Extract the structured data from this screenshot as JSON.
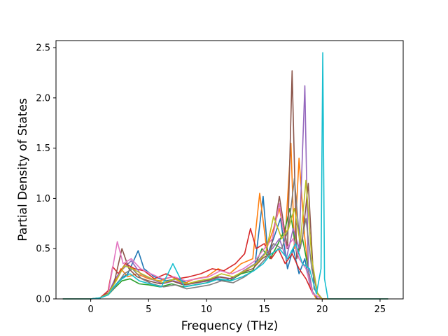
{
  "chart_data": {
    "type": "line",
    "title": "",
    "xlabel": "Frequency (THz)",
    "ylabel": "Partial Density of States",
    "xlim": [
      -3.0,
      27.0
    ],
    "ylim": [
      0.0,
      2.57
    ],
    "xticks": [
      0,
      5,
      10,
      15,
      20,
      25
    ],
    "yticks": [
      0.0,
      0.5,
      1.0,
      1.5,
      2.0,
      2.5
    ],
    "ytick_labels": [
      "0.0",
      "0.5",
      "1.0",
      "1.5",
      "2.0",
      "2.5"
    ],
    "grid": false,
    "legend": "none",
    "series": [
      {
        "color": "#1f77b4",
        "x": [
          -2.4,
          0.0,
          0.8,
          1.5,
          2.0,
          2.6,
          3.2,
          4.1,
          4.6,
          5.5,
          6.5,
          7.5,
          8.5,
          9.5,
          10.5,
          11.5,
          12.5,
          13.5,
          14.2,
          14.9,
          15.3,
          15.8,
          16.4,
          17.0,
          17.5,
          18.0,
          18.5,
          19.0,
          19.6,
          20.0,
          20.4,
          21.0,
          25.7
        ],
        "y": [
          0,
          0,
          0.01,
          0.06,
          0.12,
          0.2,
          0.25,
          0.48,
          0.3,
          0.22,
          0.18,
          0.2,
          0.15,
          0.17,
          0.2,
          0.18,
          0.22,
          0.3,
          0.35,
          1.02,
          0.45,
          0.6,
          0.8,
          0.3,
          0.5,
          0.25,
          0.4,
          0.1,
          0,
          0,
          0,
          0,
          0
        ]
      },
      {
        "color": "#ff7f0e",
        "x": [
          -2.4,
          0.0,
          0.8,
          1.5,
          2.0,
          2.6,
          3.2,
          4.0,
          5.0,
          6.0,
          7.0,
          8.0,
          9.0,
          10.0,
          11.0,
          12.0,
          13.0,
          14.0,
          14.6,
          15.2,
          15.8,
          16.3,
          16.8,
          17.3,
          17.6,
          18.0,
          18.5,
          19.0,
          19.5,
          20.0,
          25.7
        ],
        "y": [
          0,
          0,
          0.01,
          0.05,
          0.15,
          0.3,
          0.22,
          0.25,
          0.2,
          0.18,
          0.22,
          0.15,
          0.2,
          0.22,
          0.3,
          0.25,
          0.35,
          0.4,
          1.05,
          0.5,
          0.7,
          0.9,
          0.6,
          1.55,
          0.5,
          1.4,
          0.6,
          0.1,
          0,
          0,
          0
        ]
      },
      {
        "color": "#2ca02c",
        "x": [
          -2.4,
          0.0,
          0.8,
          1.5,
          2.0,
          2.7,
          3.4,
          4.2,
          5.0,
          6.0,
          7.0,
          8.0,
          9.0,
          10.0,
          11.0,
          12.0,
          13.0,
          14.0,
          14.8,
          15.5,
          16.2,
          16.8,
          17.2,
          17.8,
          18.3,
          18.8,
          19.2,
          20.0,
          25.7
        ],
        "y": [
          0,
          0,
          0.01,
          0.04,
          0.1,
          0.18,
          0.2,
          0.15,
          0.14,
          0.12,
          0.15,
          0.12,
          0.14,
          0.16,
          0.2,
          0.18,
          0.25,
          0.28,
          0.5,
          0.4,
          0.55,
          0.7,
          0.9,
          0.45,
          0.6,
          0.3,
          0.05,
          0,
          0
        ]
      },
      {
        "color": "#d62728",
        "x": [
          -2.4,
          0.0,
          0.8,
          1.5,
          1.9,
          2.4,
          3.0,
          3.8,
          4.6,
          5.5,
          6.5,
          7.5,
          8.5,
          9.5,
          10.5,
          11.5,
          12.5,
          13.3,
          13.8,
          14.3,
          15.0,
          15.6,
          16.2,
          16.8,
          17.4,
          18.0,
          18.6,
          19.2,
          20.0,
          25.7
        ],
        "y": [
          0,
          0,
          0.01,
          0.08,
          0.32,
          0.25,
          0.35,
          0.3,
          0.28,
          0.2,
          0.25,
          0.2,
          0.22,
          0.25,
          0.3,
          0.28,
          0.35,
          0.45,
          0.7,
          0.5,
          0.55,
          0.4,
          0.5,
          0.35,
          0.45,
          0.3,
          0.2,
          0.05,
          0,
          0
        ]
      },
      {
        "color": "#9467bd",
        "x": [
          -2.4,
          0.0,
          0.8,
          1.5,
          2.1,
          2.8,
          3.5,
          4.3,
          5.2,
          6.2,
          7.2,
          8.2,
          9.2,
          10.2,
          11.2,
          12.2,
          13.2,
          14.2,
          15.0,
          15.7,
          16.3,
          16.9,
          17.5,
          18.0,
          18.5,
          18.8,
          19.2,
          20.0,
          25.7
        ],
        "y": [
          0,
          0,
          0.01,
          0.05,
          0.2,
          0.3,
          0.38,
          0.25,
          0.2,
          0.15,
          0.18,
          0.14,
          0.16,
          0.18,
          0.22,
          0.2,
          0.28,
          0.35,
          0.45,
          0.5,
          0.6,
          0.4,
          0.7,
          0.5,
          2.12,
          0.3,
          0.05,
          0,
          0
        ]
      },
      {
        "color": "#8c564b",
        "x": [
          -2.4,
          0.0,
          0.8,
          1.5,
          2.0,
          2.7,
          3.3,
          4.0,
          5.0,
          6.0,
          7.0,
          8.0,
          9.0,
          10.0,
          11.0,
          12.0,
          13.0,
          14.0,
          14.8,
          15.5,
          16.3,
          17.0,
          17.4,
          17.8,
          18.3,
          18.8,
          19.3,
          20.0,
          25.7
        ],
        "y": [
          0,
          0,
          0.01,
          0.06,
          0.15,
          0.5,
          0.3,
          0.22,
          0.18,
          0.15,
          0.18,
          0.14,
          0.16,
          0.18,
          0.22,
          0.2,
          0.26,
          0.3,
          0.4,
          0.45,
          1.02,
          0.5,
          2.27,
          0.4,
          0.6,
          1.15,
          0.1,
          0,
          0
        ]
      },
      {
        "color": "#e377c2",
        "x": [
          -2.4,
          0.0,
          0.8,
          1.5,
          2.3,
          2.8,
          3.5,
          4.3,
          5.2,
          6.2,
          7.2,
          8.2,
          9.2,
          10.2,
          11.2,
          12.2,
          13.2,
          14.2,
          15.0,
          15.7,
          16.3,
          16.9,
          17.5,
          18.0,
          18.6,
          19.2,
          20.0,
          25.7
        ],
        "y": [
          0,
          0,
          0.01,
          0.05,
          0.57,
          0.35,
          0.4,
          0.3,
          0.25,
          0.2,
          0.22,
          0.18,
          0.2,
          0.22,
          0.28,
          0.25,
          0.3,
          0.38,
          0.5,
          0.6,
          0.95,
          0.5,
          0.6,
          0.4,
          0.3,
          0.05,
          0,
          0
        ]
      },
      {
        "color": "#7f7f7f",
        "x": [
          -2.4,
          0.0,
          0.8,
          1.5,
          2.1,
          2.9,
          3.6,
          4.4,
          5.3,
          6.3,
          7.3,
          8.3,
          9.3,
          10.3,
          11.3,
          12.3,
          13.3,
          14.3,
          15.1,
          15.8,
          16.5,
          17.1,
          17.6,
          18.1,
          18.6,
          19.1,
          19.6,
          20.0,
          25.7
        ],
        "y": [
          0,
          0,
          0.01,
          0.04,
          0.12,
          0.25,
          0.3,
          0.2,
          0.15,
          0.12,
          0.14,
          0.1,
          0.12,
          0.14,
          0.18,
          0.16,
          0.22,
          0.3,
          0.4,
          0.55,
          0.5,
          0.7,
          1.2,
          0.5,
          0.8,
          0.3,
          0.05,
          0,
          0
        ]
      },
      {
        "color": "#bcbd22",
        "x": [
          -2.4,
          0.0,
          0.8,
          1.5,
          2.2,
          2.9,
          3.6,
          4.4,
          5.3,
          6.3,
          7.3,
          8.3,
          9.3,
          10.3,
          11.3,
          12.3,
          13.3,
          14.3,
          15.1,
          15.8,
          16.5,
          17.1,
          17.6,
          18.1,
          18.6,
          19.1,
          19.6,
          20.0,
          25.7
        ],
        "y": [
          0,
          0,
          0.01,
          0.05,
          0.18,
          0.33,
          0.3,
          0.25,
          0.2,
          0.16,
          0.2,
          0.15,
          0.18,
          0.2,
          0.25,
          0.22,
          0.28,
          0.35,
          0.45,
          0.82,
          0.6,
          0.7,
          0.9,
          0.55,
          1.18,
          0.4,
          0.05,
          0,
          0
        ]
      },
      {
        "color": "#17becf",
        "x": [
          -2.4,
          0.0,
          0.8,
          1.5,
          2.0,
          2.7,
          3.4,
          4.2,
          5.1,
          6.1,
          7.1,
          8.1,
          9.1,
          10.1,
          11.1,
          12.1,
          13.1,
          14.1,
          14.9,
          15.6,
          16.3,
          17.0,
          17.7,
          18.3,
          18.9,
          19.5,
          19.9,
          20.05,
          20.2,
          20.5,
          21.0,
          25.7
        ],
        "y": [
          0,
          0,
          0.01,
          0.04,
          0.12,
          0.2,
          0.25,
          0.18,
          0.15,
          0.12,
          0.35,
          0.12,
          0.14,
          0.16,
          0.2,
          0.18,
          0.22,
          0.28,
          0.35,
          0.45,
          0.5,
          0.4,
          0.55,
          0.35,
          0.3,
          0.05,
          0.3,
          2.45,
          0.2,
          0,
          0,
          0
        ]
      }
    ]
  }
}
